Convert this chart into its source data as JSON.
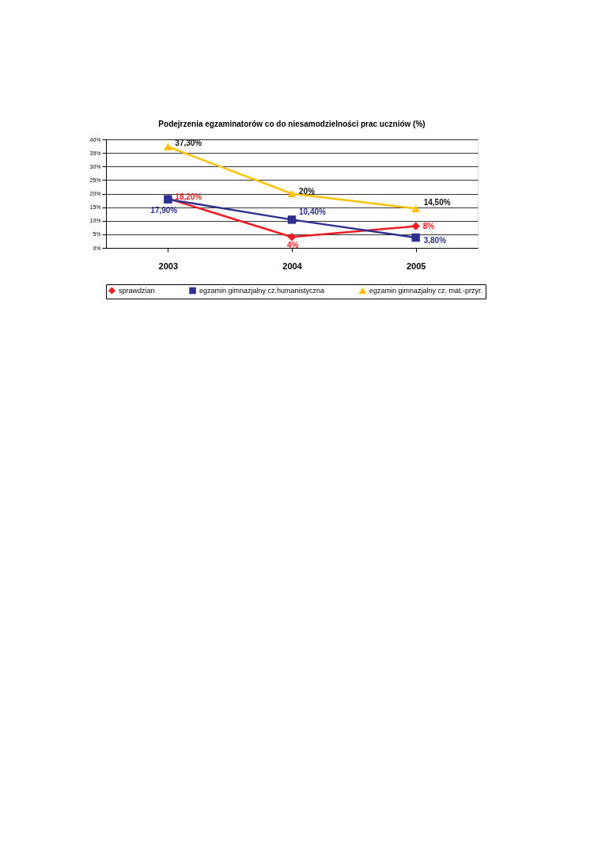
{
  "chart_data": {
    "type": "line",
    "title": "Podejrzenia egzaminatorów co do niesamodzielności prac uczniów (%)",
    "categories": [
      "2003",
      "2004",
      "2005"
    ],
    "series": [
      {
        "name": "sprawdzian",
        "color": "#ee1c25",
        "marker": "diamond",
        "values": [
          18.2,
          4,
          8
        ],
        "value_labels": [
          "18,20%",
          "4%",
          "8%"
        ]
      },
      {
        "name": "egzamin gimnazjalny cz.humanistyczna",
        "color": "#2e3192",
        "marker": "square",
        "values": [
          17.9,
          10.4,
          3.8
        ],
        "value_labels": [
          "17,90%",
          "10,40%",
          "3,80%"
        ]
      },
      {
        "name": "egzamin gimnazjalny cz. mat.-przyr.",
        "color": "#ffc000",
        "marker": "triangle",
        "values": [
          37.3,
          20,
          14.5
        ],
        "value_labels": [
          "37,30%",
          "20%",
          "14,50%"
        ]
      }
    ],
    "ylim": [
      0,
      40
    ],
    "yticks": [
      {
        "value": 0,
        "label": "0%"
      },
      {
        "value": 5,
        "label": "5%"
      },
      {
        "value": 10,
        "label": "10%"
      },
      {
        "value": 15,
        "label": "15%"
      },
      {
        "value": 20,
        "label": "20%"
      },
      {
        "value": 25,
        "label": "25%"
      },
      {
        "value": 30,
        "label": "30%"
      },
      {
        "value": 35,
        "label": "35%"
      },
      {
        "value": 40,
        "label": "40%"
      }
    ],
    "grid": "y",
    "legend": "bottom"
  }
}
